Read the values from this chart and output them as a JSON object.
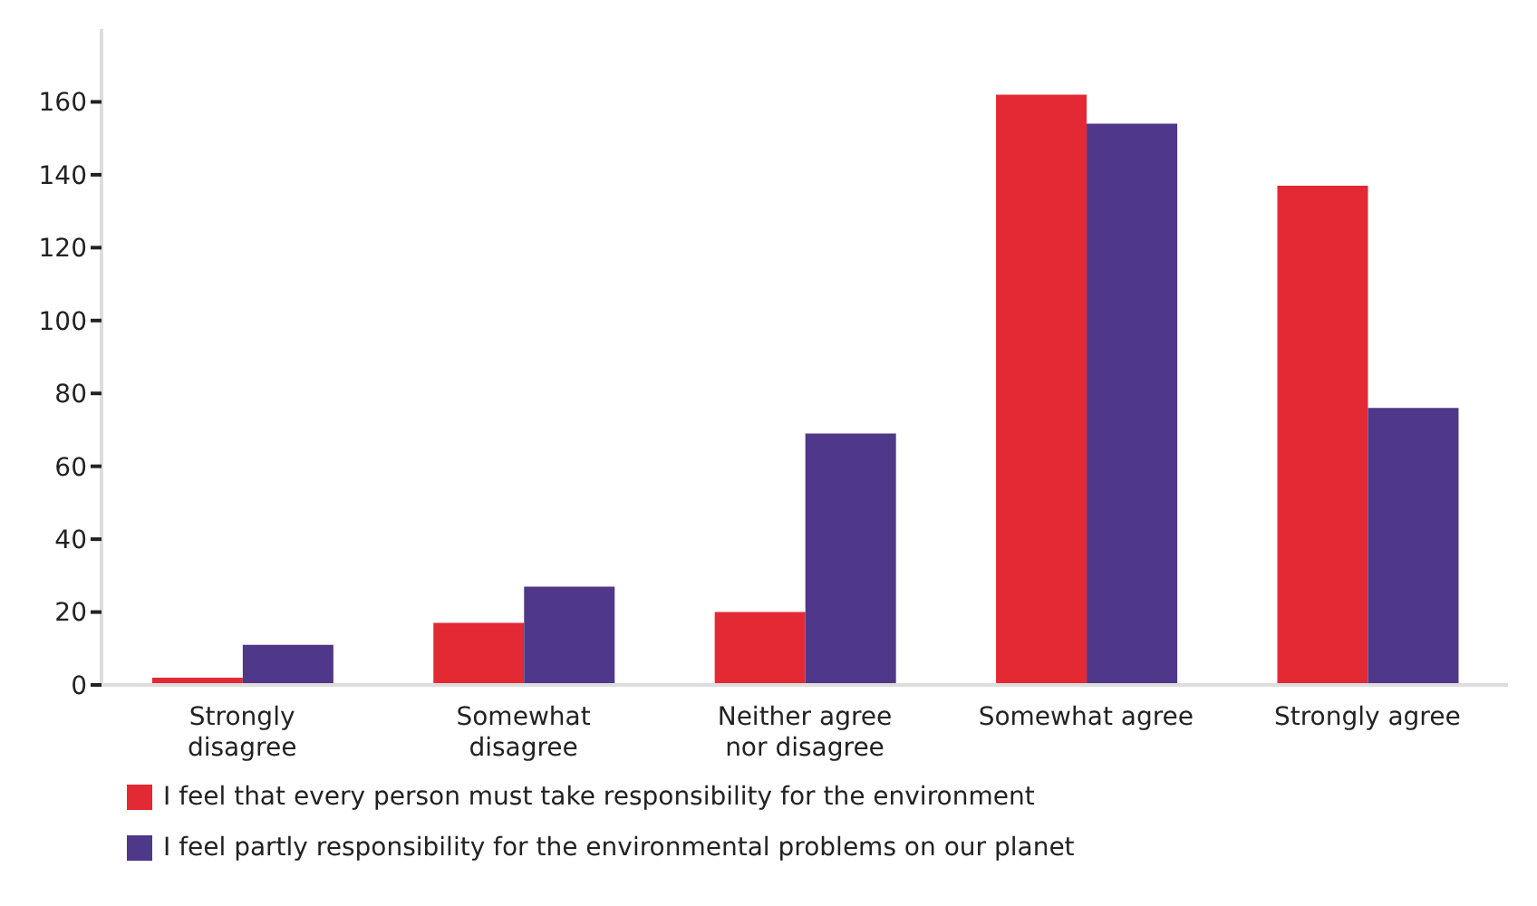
{
  "chart_data": {
    "type": "bar",
    "categories": [
      "Strongly disagree",
      "Somewhat disagree",
      "Neither agree nor disagree",
      "Somewhat agree",
      "Strongly agree"
    ],
    "series": [
      {
        "name": "I feel that every person must take responsibility for the environment",
        "color": "#e32934",
        "values": [
          2,
          17,
          20,
          162,
          137
        ]
      },
      {
        "name": "I feel partly responsibility for the environmental problems on our planet",
        "color": "#4f3789",
        "values": [
          11,
          27,
          69,
          154,
          76
        ]
      }
    ],
    "ylim": [
      0,
      180
    ],
    "yticks": [
      0,
      20,
      40,
      60,
      80,
      100,
      120,
      140,
      160
    ],
    "grid": false,
    "legend": "bottom"
  }
}
